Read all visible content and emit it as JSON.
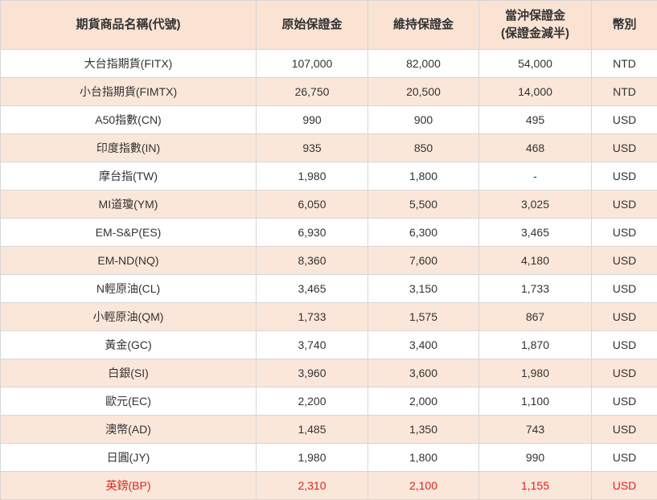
{
  "table": {
    "headers": [
      "期貨商品名稱(代號)",
      "原始保證金",
      "維持保證金",
      "當沖保證金",
      "(保證金減半)",
      "幣別"
    ],
    "rows": [
      [
        "大台指期貨(FITX)",
        "107,000",
        "82,000",
        "54,000",
        "NTD"
      ],
      [
        "小台指期貨(FIMTX)",
        "26,750",
        "20,500",
        "14,000",
        "NTD"
      ],
      [
        "A50指數(CN)",
        "990",
        "900",
        "495",
        "USD"
      ],
      [
        "印度指數(IN)",
        "935",
        "850",
        "468",
        "USD"
      ],
      [
        "摩台指(TW)",
        "1,980",
        "1,800",
        "-",
        "USD"
      ],
      [
        "MI道瓊(YM)",
        "6,050",
        "5,500",
        "3,025",
        "USD"
      ],
      [
        "EM-S&P(ES)",
        "6,930",
        "6,300",
        "3,465",
        "USD"
      ],
      [
        "EM-ND(NQ)",
        "8,360",
        "7,600",
        "4,180",
        "USD"
      ],
      [
        "N輕原油(CL)",
        "3,465",
        "3,150",
        "1,733",
        "USD"
      ],
      [
        "小輕原油(QM)",
        "1,733",
        "1,575",
        "867",
        "USD"
      ],
      [
        "黃金(GC)",
        "3,740",
        "3,400",
        "1,870",
        "USD"
      ],
      [
        "白銀(SI)",
        "3,960",
        "3,600",
        "1,980",
        "USD"
      ],
      [
        "歐元(EC)",
        "2,200",
        "2,000",
        "1,100",
        "USD"
      ],
      [
        "澳幣(AD)",
        "1,485",
        "1,350",
        "743",
        "USD"
      ],
      [
        "日圓(JY)",
        "1,980",
        "1,800",
        "990",
        "USD"
      ],
      [
        "英鎊(BP)",
        "2,310",
        "2,100",
        "1,155",
        "USD"
      ]
    ]
  },
  "colors": {
    "header_bg": "#fbe3d4",
    "stripe_bg": "#fbe7da",
    "highlight_text": "#e02020"
  }
}
